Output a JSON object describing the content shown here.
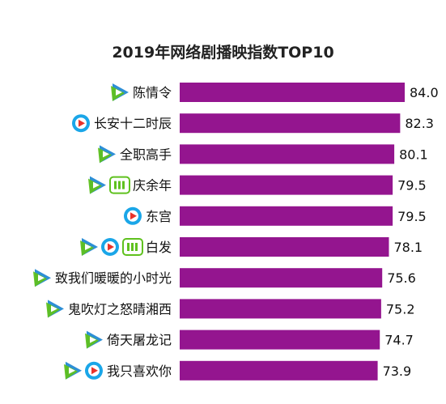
{
  "chart_data": {
    "type": "bar",
    "orientation": "horizontal",
    "title": "2019年网络剧播映指数TOP10",
    "xlabel": "",
    "ylabel": "",
    "xlim": [
      0,
      84.0
    ],
    "grid": false,
    "legend": "none",
    "colors": {
      "bar": "#94158f",
      "tencent": "#2d8fd6",
      "youku": "#1aa6e8",
      "iqiyi": "#5fc11e"
    },
    "categories": [
      "陈情令",
      "长安十二时辰",
      "全职高手",
      "庆余年",
      "东宫",
      "白发",
      "致我们暖暖的小时光",
      "鬼吹灯之怒晴湘西",
      "倚天屠龙记",
      "我只喜欢你"
    ],
    "values": [
      84.0,
      82.3,
      80.1,
      79.5,
      79.5,
      78.1,
      75.6,
      75.2,
      74.7,
      73.9
    ],
    "value_labels": [
      "84.0",
      "82.3",
      "80.1",
      "79.5",
      "79.5",
      "78.1",
      "75.6",
      "75.2",
      "74.7",
      "73.9"
    ],
    "platform_icons": [
      [
        "tencent-video-icon"
      ],
      [
        "youku-icon"
      ],
      [
        "tencent-video-icon"
      ],
      [
        "tencent-video-icon",
        "iqiyi-icon"
      ],
      [
        "youku-icon"
      ],
      [
        "tencent-video-icon",
        "youku-icon",
        "iqiyi-icon"
      ],
      [
        "tencent-video-icon"
      ],
      [
        "tencent-video-icon"
      ],
      [
        "tencent-video-icon"
      ],
      [
        "tencent-video-icon",
        "youku-icon"
      ]
    ]
  }
}
